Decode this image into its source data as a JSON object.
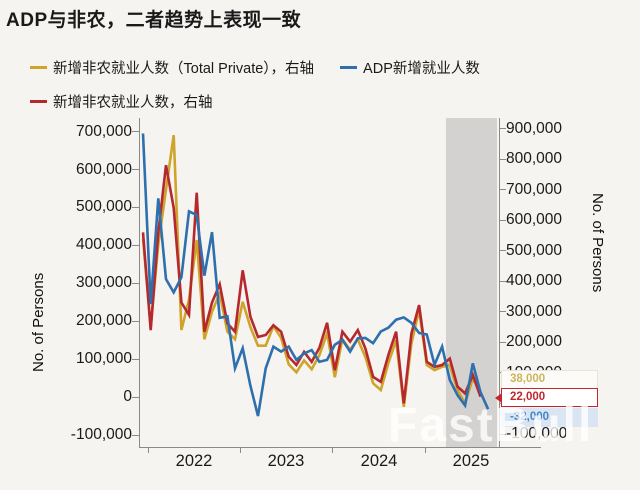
{
  "title": "ADP与非农，二者趋势上表现一致",
  "legend": [
    {
      "label": "新增非农就业人数（Total Private），右轴",
      "color": "#cfa42b"
    },
    {
      "label": "ADP新增就业人数",
      "color": "#2e6fad"
    },
    {
      "label": "新增非农就业人数，右轴",
      "color": "#b5282e"
    }
  ],
  "left_axis": {
    "title": "No. of Persons",
    "tick_labels": [
      "700,000",
      "600,000",
      "500,000",
      "400,000",
      "300,000",
      "200,000",
      "100,000",
      "0",
      "-100,000"
    ],
    "tick_values": [
      700000,
      600000,
      500000,
      400000,
      300000,
      200000,
      100000,
      0,
      -100000
    ]
  },
  "right_axis": {
    "title": "No. of Persons",
    "tick_labels": [
      "900,000",
      "800,000",
      "700,000",
      "600,000",
      "500,000",
      "400,000",
      "300,000",
      "200,000",
      "100,000",
      "0",
      "-100,000"
    ],
    "tick_values": [
      900000,
      800000,
      700000,
      600000,
      500000,
      400000,
      300000,
      200000,
      100000,
      0,
      -100000
    ]
  },
  "x_axis": {
    "years": [
      "2022",
      "2023",
      "2024",
      "2025"
    ]
  },
  "data_labels": [
    {
      "value": "38,000",
      "series": "新增非农就业人数（Total Private），右轴"
    },
    {
      "value": "22,000",
      "series": "新增非农就业人数，右轴"
    },
    {
      "value": "-32,000",
      "series": "ADP新增就业人数"
    }
  ],
  "watermark": "FastBull",
  "highlight_band": {
    "from_index": 39.5,
    "to_index": 46.2,
    "color": "#d3d2d0"
  },
  "chart_data": {
    "type": "line",
    "x_months": [
      "2021-12",
      "2022-01",
      "2022-02",
      "2022-03",
      "2022-04",
      "2022-05",
      "2022-06",
      "2022-07",
      "2022-08",
      "2022-09",
      "2022-10",
      "2022-11",
      "2022-12",
      "2023-01",
      "2023-02",
      "2023-03",
      "2023-04",
      "2023-05",
      "2023-06",
      "2023-07",
      "2023-08",
      "2023-09",
      "2023-10",
      "2023-11",
      "2023-12",
      "2024-01",
      "2024-02",
      "2024-03",
      "2024-04",
      "2024-05",
      "2024-06",
      "2024-07",
      "2024-08",
      "2024-09",
      "2024-10",
      "2024-11",
      "2024-12",
      "2025-01",
      "2025-02",
      "2025-03",
      "2025-04",
      "2025-05",
      "2025-06",
      "2025-07",
      "2025-08",
      "2025-09"
    ],
    "left_ylim": [
      -100000,
      700000
    ],
    "right_ylim": [
      -100000,
      900000
    ],
    "series": [
      {
        "name": "新增非农就业人数（Total Private），右轴",
        "axis": "right",
        "color": "#cfa42b",
        "values": [
          540000,
          250000,
          520000,
          700000,
          878000,
          240000,
          340000,
          535000,
          210000,
          300000,
          360000,
          235000,
          210000,
          333000,
          250000,
          189000,
          189000,
          253000,
          215000,
          128000,
          102000,
          141000,
          112000,
          158000,
          230000,
          86000,
          210000,
          176000,
          210000,
          152000,
          66000,
          44000,
          132000,
          207000,
          -11000,
          196000,
          306000,
          126000,
          109000,
          120000,
          126000,
          44000,
          0,
          82000,
          38000,
          null
        ]
      },
      {
        "name": "新增非农就业人数，右轴",
        "axis": "right",
        "color": "#b5282e",
        "values": [
          560000,
          240000,
          560000,
          780000,
          640000,
          330000,
          290000,
          690000,
          235000,
          330000,
          390000,
          262000,
          235000,
          436000,
          284000,
          218000,
          224000,
          256000,
          235000,
          153000,
          126000,
          169000,
          136000,
          182000,
          264000,
          109000,
          235000,
          202000,
          240000,
          180000,
          87000,
          71000,
          159000,
          235000,
          0,
          229000,
          322000,
          136000,
          120000,
          126000,
          147000,
          55000,
          33000,
          93000,
          22000,
          null
        ]
      },
      {
        "name": "ADP新增就业人数",
        "axis": "left",
        "color": "#2e6fad",
        "values": [
          695000,
          245000,
          524000,
          311000,
          276000,
          316000,
          490000,
          480000,
          320000,
          435000,
          209000,
          213000,
          76000,
          129000,
          30000,
          -50000,
          76000,
          133000,
          120000,
          133000,
          98000,
          115000,
          124000,
          93000,
          98000,
          138000,
          151000,
          120000,
          155000,
          156000,
          142000,
          173000,
          183000,
          204000,
          210000,
          196000,
          169000,
          165000,
          85000,
          133000,
          45000,
          5000,
          -22000,
          89000,
          13000,
          -32000
        ]
      }
    ]
  }
}
